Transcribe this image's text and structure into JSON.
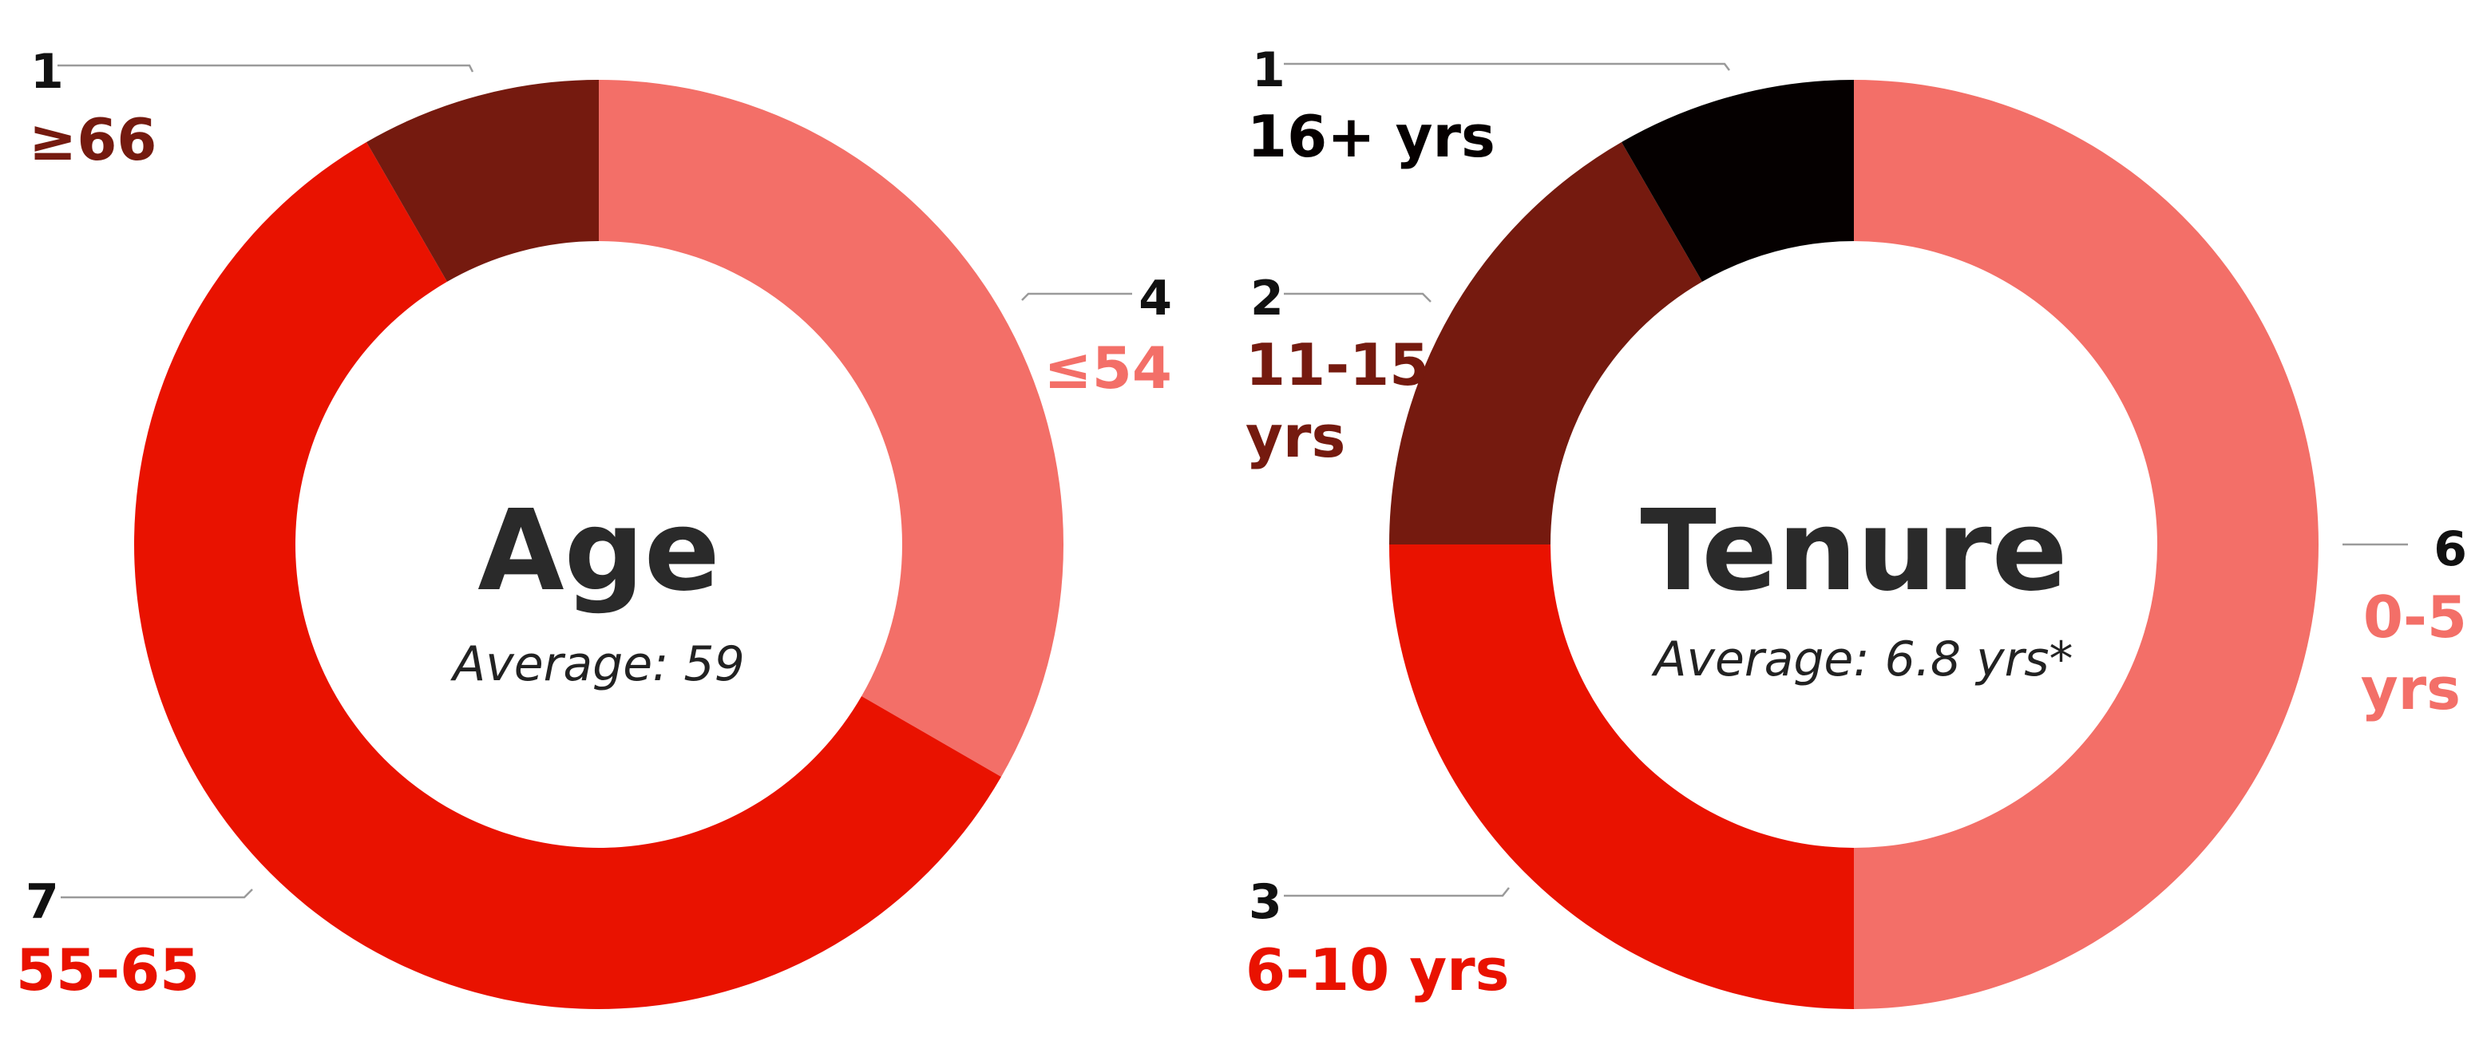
{
  "chart_data": [
    {
      "type": "pie",
      "title": "Age",
      "subtitle": "Average: 59",
      "slices": [
        {
          "label": "≤54",
          "value": 4,
          "color": "#f36f68"
        },
        {
          "label": "55-65",
          "value": 7,
          "color": "#e91200"
        },
        {
          "label": "≥66",
          "value": 1,
          "color": "#751a0f"
        }
      ]
    },
    {
      "type": "pie",
      "title": "Tenure",
      "subtitle": "Average: 6.8 yrs*",
      "slices": [
        {
          "label": "0-5 yrs",
          "value": 6,
          "color": "#f36f68"
        },
        {
          "label": "6-10 yrs",
          "value": 3,
          "color": "#e91200"
        },
        {
          "label": "11-15 yrs",
          "value": 2,
          "color": "#751a0f"
        },
        {
          "label": "16+ yrs",
          "value": 1,
          "color": "#050000"
        }
      ]
    }
  ]
}
